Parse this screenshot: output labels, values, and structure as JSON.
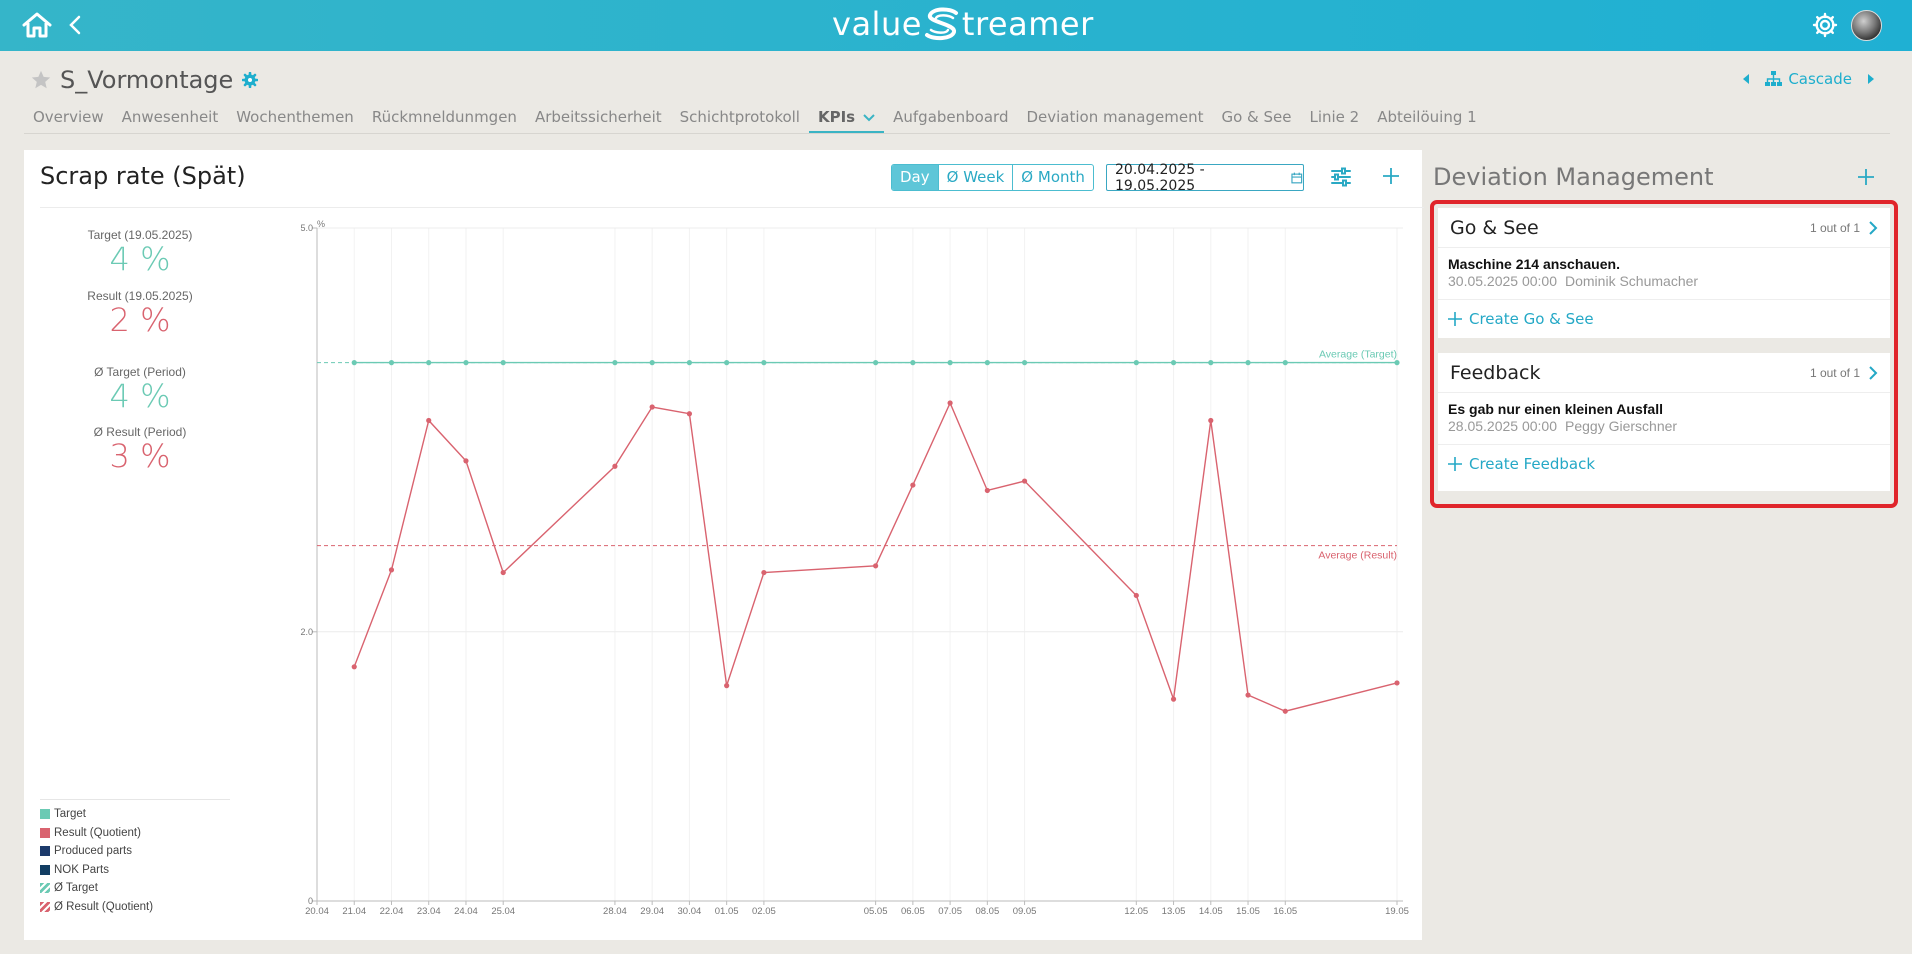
{
  "header": {
    "logo_left": "value",
    "logo_right": "treamer",
    "icons": [
      "home-icon",
      "back-icon",
      "settings-gear-icon",
      "user-avatar"
    ]
  },
  "page": {
    "title": "S_Vormontage",
    "cascade_label": "Cascade"
  },
  "tabs": [
    {
      "label": "Overview"
    },
    {
      "label": "Anwesenheit"
    },
    {
      "label": "Wochenthemen"
    },
    {
      "label": "Rückmneldunmgen"
    },
    {
      "label": "Arbeitssicherheit"
    },
    {
      "label": "Schichtprotokoll"
    },
    {
      "label": "KPIs",
      "active": true
    },
    {
      "label": "Aufgabenboard"
    },
    {
      "label": "Deviation management"
    },
    {
      "label": "Go & See"
    },
    {
      "label": "Linie 2"
    },
    {
      "label": "Abteilöuing 1"
    }
  ],
  "kpi": {
    "title": "Scrap rate (Spät)",
    "periods": [
      "Day",
      "Ø Week",
      "Ø Month"
    ],
    "active_period": "Day",
    "date_range": "20.04.2025 - 19.05.2025",
    "stats": [
      {
        "label": "Target (19.05.2025)",
        "value": "4 %",
        "color": "teal"
      },
      {
        "label": "Result (19.05.2025)",
        "value": "2 %",
        "color": "red"
      },
      {
        "label": "Ø Target (Period)",
        "value": "4 %",
        "color": "teal"
      },
      {
        "label": "Ø Result (Period)",
        "value": "3 %",
        "color": "red"
      }
    ],
    "legend": [
      {
        "label": "Target",
        "color": "#6bcab4",
        "hatch": false
      },
      {
        "label": "Result (Quotient)",
        "color": "#d9636f",
        "hatch": false
      },
      {
        "label": "Produced parts",
        "color": "#1c3a6b",
        "hatch": false
      },
      {
        "label": "NOK Parts",
        "color": "#123d63",
        "hatch": false
      },
      {
        "label": "Ø Target",
        "color": "#6bcab4",
        "hatch": true
      },
      {
        "label": "Ø Result (Quotient)",
        "color": "#d9636f",
        "hatch": true
      }
    ]
  },
  "chart_data": {
    "type": "line",
    "y_unit": "%",
    "y_ticks": [
      "0",
      "2.0",
      "5.0"
    ],
    "ylim": [
      0,
      5
    ],
    "x_ticks": [
      "20.04",
      "21.04",
      "22.04",
      "23.04",
      "24.04",
      "25.04",
      "28.04",
      "29.04",
      "30.04",
      "01.05",
      "02.05",
      "05.05",
      "06.05",
      "07.05",
      "08.05",
      "09.05",
      "12.05",
      "13.05",
      "14.05",
      "15.05",
      "16.05",
      "19.05"
    ],
    "x_days": [
      0,
      1,
      2,
      3,
      4,
      5,
      8,
      9,
      10,
      11,
      12,
      15,
      16,
      17,
      18,
      19,
      22,
      23,
      24,
      25,
      26,
      29
    ],
    "series": [
      {
        "name": "Target",
        "color": "#6bcab4",
        "x": [
          "21.04",
          "22.04",
          "23.04",
          "24.04",
          "25.04",
          "28.04",
          "29.04",
          "30.04",
          "01.05",
          "02.05",
          "05.05",
          "06.05",
          "07.05",
          "08.05",
          "09.05",
          "12.05",
          "13.05",
          "14.05",
          "15.05",
          "16.05",
          "19.05"
        ],
        "values": [
          4.0,
          4.0,
          4.0,
          4.0,
          4.0,
          4.0,
          4.0,
          4.0,
          4.0,
          4.0,
          4.0,
          4.0,
          4.0,
          4.0,
          4.0,
          4.0,
          4.0,
          4.0,
          4.0,
          4.0,
          4.0
        ]
      },
      {
        "name": "Result (Quotient)",
        "color": "#d9636f",
        "x": [
          "21.04",
          "22.04",
          "23.04",
          "24.04",
          "25.04",
          "28.04",
          "29.04",
          "30.04",
          "01.05",
          "02.05",
          "05.05",
          "06.05",
          "07.05",
          "08.05",
          "09.05",
          "12.05",
          "13.05",
          "14.05",
          "15.05",
          "16.05",
          "19.05"
        ],
        "values": [
          1.74,
          2.46,
          3.57,
          3.27,
          2.44,
          3.23,
          3.67,
          3.62,
          1.6,
          2.44,
          2.49,
          3.09,
          3.7,
          3.05,
          3.12,
          2.27,
          1.5,
          3.57,
          1.53,
          1.41,
          1.62
        ]
      }
    ],
    "reference_lines": [
      {
        "label": "Average (Target)",
        "value": 4.0,
        "color": "#6bcab4"
      },
      {
        "label": "Average (Result)",
        "value": 2.64,
        "color": "#d9636f"
      }
    ]
  },
  "deviation": {
    "title": "Deviation Management",
    "go_see": {
      "title": "Go & See",
      "count": "1 out of 1",
      "entry_title": "Maschine 214 anschauen.",
      "entry_date": "30.05.2025 00:00",
      "entry_person": "Dominik Schumacher",
      "create_label": "Create Go & See"
    },
    "feedback": {
      "title": "Feedback",
      "count": "1 out of 1",
      "entry_title": "Es gab nur einen kleinen Ausfall",
      "entry_date": "28.05.2025 00:00",
      "entry_person": "Peggy Gierschner",
      "create_label": "Create Feedback"
    }
  }
}
